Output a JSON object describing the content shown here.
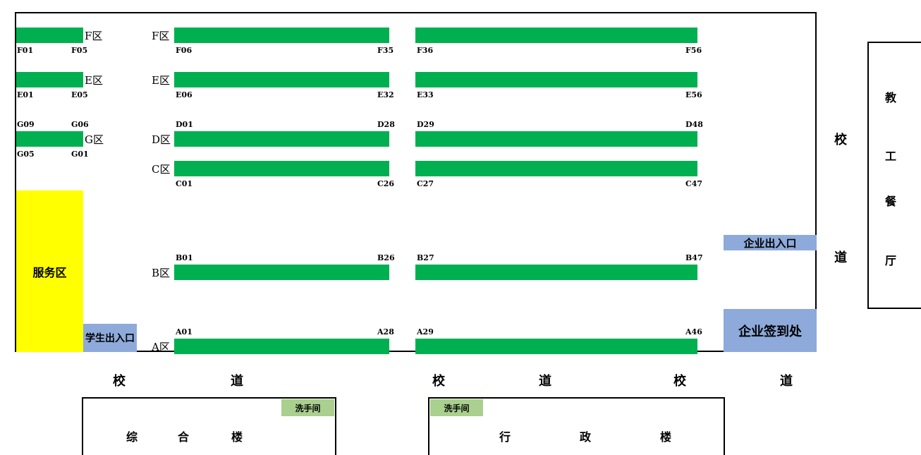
{
  "colors": {
    "booth": "#00b050",
    "service": "#ffff00",
    "entrance": "#8eaadb",
    "restroom": "#a9d08e"
  },
  "zones": {
    "f_left": "F区",
    "e_left": "E区",
    "g_left": "G区",
    "f": "F区",
    "e": "E区",
    "d": "D区",
    "c": "C区",
    "b": "B区",
    "a": "A区"
  },
  "codes": {
    "f01": "F01",
    "f05": "F05",
    "e01": "E01",
    "e05": "E05",
    "g09": "G09",
    "g06": "G06",
    "g05": "G05",
    "g01": "G01",
    "f06": "F06",
    "f35": "F35",
    "f36": "F36",
    "f56": "F56",
    "e06": "E06",
    "e32": "E32",
    "e33": "E33",
    "e56": "E56",
    "d01": "D01",
    "d28": "D28",
    "d29": "D29",
    "d48": "D48",
    "c01": "C01",
    "c26": "C26",
    "c27": "C27",
    "c47": "C47",
    "b01": "B01",
    "b26": "B26",
    "b27": "B27",
    "b47": "B47",
    "a01": "A01",
    "a28": "A28",
    "a29": "A29",
    "a46": "A46"
  },
  "areas": {
    "service": "服务区",
    "student_entrance": "学生出入口",
    "company_entrance": "企业出入口",
    "company_checkin": "企业签到处"
  },
  "roads": {
    "right_1": "校",
    "right_2": "道",
    "bottom": [
      "校",
      "道",
      "校",
      "道",
      "校",
      "道"
    ]
  },
  "buildings": {
    "canteen": [
      "教",
      "工",
      "餐",
      "厅"
    ],
    "complex": [
      "综",
      "合",
      "楼"
    ],
    "admin": [
      "行",
      "政",
      "楼"
    ],
    "restroom_left": "洗手间",
    "restroom_right": "洗手间"
  }
}
